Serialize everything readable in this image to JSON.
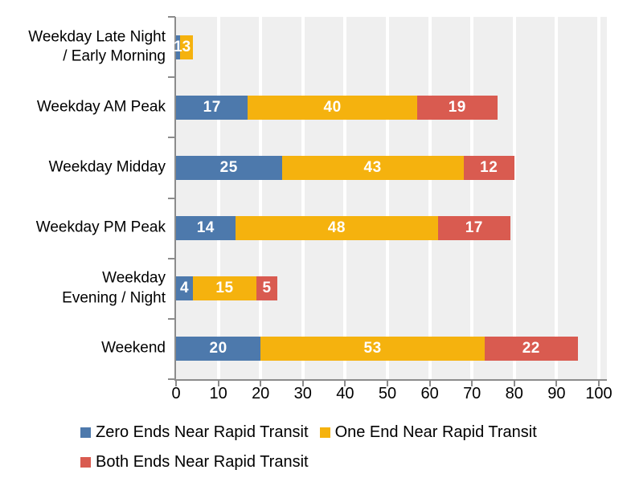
{
  "chart_data": {
    "type": "bar",
    "orientation": "horizontal",
    "stacked": true,
    "title": "",
    "xlabel": "",
    "ylabel": "",
    "xlim": [
      0,
      100
    ],
    "x_ticks": [
      0,
      10,
      20,
      30,
      40,
      50,
      60,
      70,
      80,
      90,
      100
    ],
    "grid": true,
    "legend_position": "bottom",
    "categories": [
      "Weekday Late Night / Early Morning",
      "Weekday AM Peak",
      "Weekday Midday",
      "Weekday PM Peak",
      "Weekday Evening / Night",
      "Weekend"
    ],
    "categories_display": [
      "Weekday Late Night\n/ Early Morning",
      "Weekday AM Peak",
      "Weekday Midday",
      "Weekday PM Peak",
      "Weekday\nEvening / Night",
      "Weekend"
    ],
    "series": [
      {
        "name": "Zero Ends Near Rapid Transit",
        "color": "#4D79AC",
        "values": [
          1,
          17,
          25,
          14,
          4,
          20
        ]
      },
      {
        "name": "One End Near Rapid Transit",
        "color": "#F5B20E",
        "values": [
          3,
          40,
          43,
          48,
          15,
          53
        ]
      },
      {
        "name": "Both Ends Near Rapid Transit",
        "color": "#D95B50",
        "values": [
          0,
          19,
          12,
          17,
          5,
          22
        ]
      }
    ],
    "colors": {
      "plot_background": "#EFEFEF",
      "gridline": "#FFFFFF",
      "axis": "#8C8C8C",
      "data_label": "#FFFFFF",
      "text": "#000000"
    }
  }
}
